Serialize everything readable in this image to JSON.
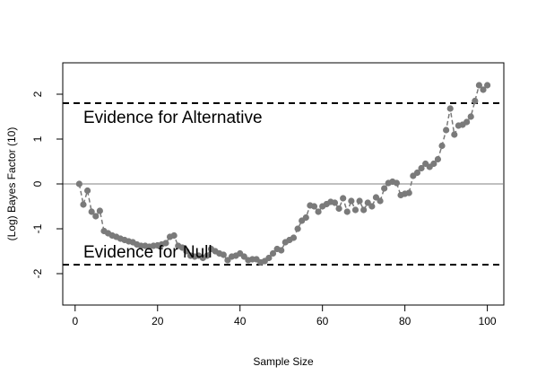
{
  "chart_data": {
    "type": "scatter",
    "title": "",
    "xlabel": "Sample Size",
    "ylabel": "(Log) Bayes Factor (10)",
    "xlim": [
      -3,
      104
    ],
    "ylim": [
      -2.7,
      2.7
    ],
    "xticks": [
      0,
      20,
      40,
      60,
      80,
      100
    ],
    "yticks": [
      -2,
      -1,
      0,
      1,
      2
    ],
    "grid": false,
    "point_color": "#7a7a7a",
    "line_style": "dashed",
    "reference_lines": [
      {
        "y": 1.8,
        "style": "dashed",
        "color": "#000000"
      },
      {
        "y": 0,
        "style": "solid",
        "color": "#808080"
      },
      {
        "y": -1.8,
        "style": "dashed",
        "color": "#000000"
      }
    ],
    "annotations": [
      {
        "text": "Evidence for Alternative",
        "x": 2,
        "y": 1.5
      },
      {
        "text": "Evidence for Null",
        "x": 2,
        "y": -1.5
      }
    ],
    "series": [
      {
        "x": [
          1,
          2,
          3,
          4,
          5,
          6,
          7,
          8,
          9,
          10,
          11,
          12,
          13,
          14,
          15,
          16,
          17,
          18,
          19,
          20,
          21,
          22,
          23,
          24,
          25,
          26,
          27,
          28,
          29,
          30,
          31,
          32,
          33,
          34,
          35,
          36,
          37,
          38,
          39,
          40,
          41,
          42,
          43,
          44,
          45,
          46,
          47,
          48,
          49,
          50,
          51,
          52,
          53,
          54,
          55,
          56,
          57,
          58,
          59,
          60,
          61,
          62,
          63,
          64,
          65,
          66,
          67,
          68,
          69,
          70,
          71,
          72,
          73,
          74,
          75,
          76,
          77,
          78,
          79,
          80,
          81,
          82,
          83,
          84,
          85,
          86,
          87,
          88,
          89,
          90,
          91,
          92,
          93,
          94,
          95,
          96,
          97,
          98,
          99,
          100
        ],
        "y": [
          0.0,
          -0.46,
          -0.15,
          -0.62,
          -0.72,
          -0.6,
          -1.05,
          -1.1,
          -1.15,
          -1.18,
          -1.22,
          -1.25,
          -1.28,
          -1.3,
          -1.35,
          -1.38,
          -1.38,
          -1.4,
          -1.38,
          -1.37,
          -1.35,
          -1.32,
          -1.18,
          -1.15,
          -1.38,
          -1.42,
          -1.5,
          -1.6,
          -1.62,
          -1.6,
          -1.65,
          -1.6,
          -1.45,
          -1.5,
          -1.55,
          -1.58,
          -1.7,
          -1.62,
          -1.6,
          -1.55,
          -1.62,
          -1.7,
          -1.68,
          -1.68,
          -1.75,
          -1.72,
          -1.65,
          -1.55,
          -1.45,
          -1.48,
          -1.3,
          -1.25,
          -1.2,
          -1.0,
          -0.82,
          -0.75,
          -0.48,
          -0.5,
          -0.62,
          -0.5,
          -0.45,
          -0.4,
          -0.42,
          -0.55,
          -0.32,
          -0.62,
          -0.38,
          -0.58,
          -0.38,
          -0.58,
          -0.42,
          -0.5,
          -0.3,
          -0.38,
          -0.1,
          0.02,
          0.05,
          0.02,
          -0.25,
          -0.22,
          -0.2,
          0.18,
          0.25,
          0.35,
          0.45,
          0.38,
          0.45,
          0.55,
          0.85,
          1.2,
          1.68,
          1.1,
          1.3,
          1.32,
          1.38,
          1.5,
          1.85,
          2.2,
          2.1,
          2.2
        ]
      }
    ]
  }
}
